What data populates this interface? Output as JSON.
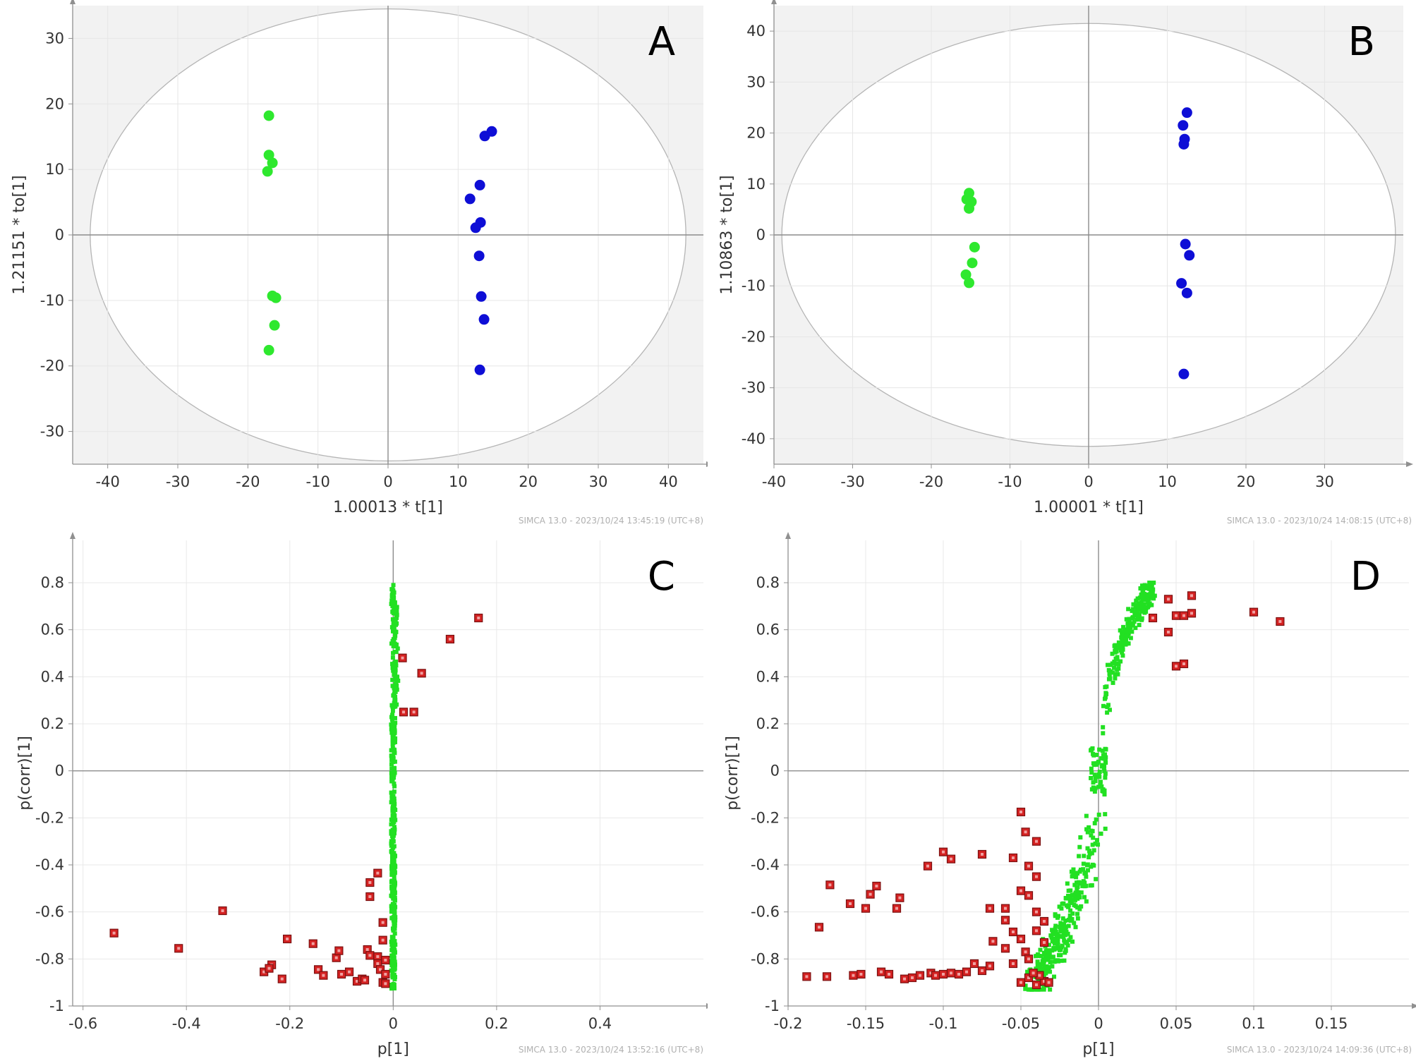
{
  "chart_data": [
    {
      "id": "A",
      "type": "scatter",
      "panel_letter": "A",
      "xlabel": "1.00013 * t[1]",
      "ylabel": "1.21151 * to[1]",
      "footer": "SIMCA 13.0 - 2023/10/24 13:45:19 (UTC+8)",
      "xlim": [
        -45,
        45
      ],
      "ylim": [
        -35,
        35
      ],
      "xticks": [
        -40,
        -30,
        -20,
        -10,
        0,
        10,
        20,
        30,
        40
      ],
      "yticks": [
        -30,
        -20,
        -10,
        0,
        10,
        20,
        30
      ],
      "ellipse": true,
      "ellipse_radii": [
        42.5,
        34.5
      ],
      "shaded_background": true,
      "grid": true,
      "series": [
        {
          "color": "#2ee82e",
          "shape": "circle",
          "points": [
            [
              -17,
              18.2
            ],
            [
              -17,
              12.2
            ],
            [
              -16.5,
              11
            ],
            [
              -17.2,
              9.7
            ],
            [
              -16.5,
              -9.3
            ],
            [
              -16,
              -9.6
            ],
            [
              -16.2,
              -13.8
            ],
            [
              -17,
              -17.6
            ]
          ]
        },
        {
          "color": "#0e0ed6",
          "shape": "circle",
          "points": [
            [
              14.8,
              15.8
            ],
            [
              13.8,
              15.1
            ],
            [
              13.1,
              7.6
            ],
            [
              11.7,
              5.5
            ],
            [
              13.2,
              1.9
            ],
            [
              12.5,
              1.1
            ],
            [
              13,
              -3.2
            ],
            [
              13.3,
              -9.4
            ],
            [
              13.7,
              -12.9
            ],
            [
              13.1,
              -20.6
            ]
          ]
        }
      ]
    },
    {
      "id": "B",
      "type": "scatter",
      "panel_letter": "B",
      "xlabel": "1.00001 * t[1]",
      "ylabel": "1.10863 * to[1]",
      "footer": "SIMCA 13.0 - 2023/10/24 14:08:15 (UTC+8)",
      "xlim": [
        -40,
        40
      ],
      "ylim": [
        -45,
        45
      ],
      "xticks": [
        -40,
        -30,
        -20,
        -10,
        0,
        10,
        20,
        30
      ],
      "yticks": [
        -40,
        -30,
        -20,
        -10,
        0,
        10,
        20,
        30,
        40
      ],
      "ellipse": true,
      "ellipse_radii": [
        39,
        41.5
      ],
      "shaded_background": true,
      "grid": true,
      "series": [
        {
          "color": "#2ee82e",
          "shape": "circle",
          "points": [
            [
              -15.2,
              8.2
            ],
            [
              -15.5,
              7
            ],
            [
              -14.9,
              6.5
            ],
            [
              -15.2,
              5.2
            ],
            [
              -14.5,
              -2.4
            ],
            [
              -14.8,
              -5.5
            ],
            [
              -15.6,
              -7.8
            ],
            [
              -15.2,
              -9.4
            ]
          ]
        },
        {
          "color": "#0e0ed6",
          "shape": "circle",
          "points": [
            [
              12.5,
              24
            ],
            [
              12,
              21.5
            ],
            [
              12.2,
              18.8
            ],
            [
              12.1,
              17.8
            ],
            [
              12.3,
              -1.8
            ],
            [
              12.8,
              -4
            ],
            [
              11.8,
              -9.5
            ],
            [
              12.5,
              -11.4
            ],
            [
              12.1,
              -27.3
            ]
          ]
        }
      ]
    },
    {
      "id": "C",
      "type": "scatter",
      "panel_letter": "C",
      "xlabel": "p[1]",
      "ylabel": "p(corr)[1]",
      "footer": "SIMCA 13.0 - 2023/10/24 13:52:16 (UTC+8)",
      "xlim": [
        -0.62,
        0.6
      ],
      "ylim": [
        -1,
        0.98
      ],
      "xticks": [
        -0.6,
        -0.4,
        -0.2,
        0,
        0.2,
        0.4
      ],
      "yticks": [
        -1,
        -0.8,
        -0.6,
        -0.4,
        -0.2,
        0,
        0.2,
        0.4,
        0.6,
        0.8
      ],
      "ellipse": false,
      "shaded_background": false,
      "grid": true,
      "green_band": {
        "color": "#22e022",
        "x_spread": 0.004,
        "y_range": [
          -0.93,
          0.8
        ],
        "count": 420
      },
      "series": [
        {
          "color": "#d42222",
          "shape": "square",
          "points": [
            [
              -0.54,
              -0.69
            ],
            [
              -0.415,
              -0.755
            ],
            [
              -0.33,
              -0.595
            ],
            [
              -0.25,
              -0.855
            ],
            [
              -0.235,
              -0.825
            ],
            [
              -0.24,
              -0.84
            ],
            [
              -0.215,
              -0.885
            ],
            [
              -0.205,
              -0.715
            ],
            [
              -0.155,
              -0.735
            ],
            [
              -0.145,
              -0.845
            ],
            [
              -0.135,
              -0.87
            ],
            [
              -0.11,
              -0.795
            ],
            [
              -0.105,
              -0.765
            ],
            [
              -0.1,
              -0.865
            ],
            [
              -0.085,
              -0.855
            ],
            [
              -0.07,
              -0.895
            ],
            [
              -0.06,
              -0.885
            ],
            [
              -0.055,
              -0.89
            ],
            [
              -0.05,
              -0.76
            ],
            [
              -0.045,
              -0.785
            ],
            [
              -0.045,
              -0.535
            ],
            [
              -0.045,
              -0.475
            ],
            [
              -0.03,
              -0.435
            ],
            [
              -0.03,
              -0.79
            ],
            [
              -0.03,
              -0.82
            ],
            [
              -0.025,
              -0.845
            ],
            [
              -0.02,
              -0.72
            ],
            [
              -0.02,
              -0.9
            ],
            [
              -0.015,
              -0.905
            ],
            [
              -0.02,
              -0.645
            ],
            [
              -0.015,
              -0.805
            ],
            [
              -0.015,
              -0.865
            ],
            [
              0.018,
              0.48
            ],
            [
              0.055,
              0.415
            ],
            [
              0.11,
              0.56
            ],
            [
              0.165,
              0.65
            ],
            [
              0.02,
              0.25
            ],
            [
              0.04,
              0.25
            ]
          ]
        }
      ]
    },
    {
      "id": "D",
      "type": "scatter",
      "panel_letter": "D",
      "xlabel": "p[1]",
      "ylabel": "p(corr)[1]",
      "footer": "SIMCA 13.0 - 2023/10/24 14:09:36 (UTC+8)",
      "xlim": [
        -0.2,
        0.2
      ],
      "ylim": [
        -1,
        0.98
      ],
      "xticks": [
        -0.2,
        -0.15,
        -0.1,
        -0.05,
        0,
        0.05,
        0.1,
        0.15
      ],
      "yticks": [
        -1,
        -0.8,
        -0.6,
        -0.4,
        -0.2,
        0,
        0.2,
        0.4,
        0.6,
        0.8
      ],
      "ellipse": false,
      "shaded_background": false,
      "grid": true,
      "green_cloud": {
        "color": "#22e022",
        "count": 560
      },
      "series": [
        {
          "color": "#d42222",
          "shape": "square",
          "points": [
            [
              -0.188,
              -0.875
            ],
            [
              -0.18,
              -0.665
            ],
            [
              -0.175,
              -0.875
            ],
            [
              -0.173,
              -0.485
            ],
            [
              -0.16,
              -0.565
            ],
            [
              -0.158,
              -0.87
            ],
            [
              -0.153,
              -0.865
            ],
            [
              -0.15,
              -0.585
            ],
            [
              -0.147,
              -0.525
            ],
            [
              -0.143,
              -0.49
            ],
            [
              -0.14,
              -0.855
            ],
            [
              -0.135,
              -0.865
            ],
            [
              -0.13,
              -0.585
            ],
            [
              -0.128,
              -0.54
            ],
            [
              -0.125,
              -0.885
            ],
            [
              -0.12,
              -0.88
            ],
            [
              -0.115,
              -0.87
            ],
            [
              -0.11,
              -0.405
            ],
            [
              -0.108,
              -0.86
            ],
            [
              -0.105,
              -0.87
            ],
            [
              -0.1,
              -0.865
            ],
            [
              -0.095,
              -0.86
            ],
            [
              -0.09,
              -0.865
            ],
            [
              -0.085,
              -0.855
            ],
            [
              -0.08,
              -0.82
            ],
            [
              -0.075,
              -0.85
            ],
            [
              -0.07,
              -0.83
            ],
            [
              -0.06,
              -0.585
            ],
            [
              -0.06,
              -0.635
            ],
            [
              -0.055,
              -0.685
            ],
            [
              -0.05,
              -0.715
            ],
            [
              -0.047,
              -0.77
            ],
            [
              -0.045,
              -0.8
            ],
            [
              -0.1,
              -0.345
            ],
            [
              -0.095,
              -0.375
            ],
            [
              -0.075,
              -0.355
            ],
            [
              -0.07,
              -0.585
            ],
            [
              -0.068,
              -0.725
            ],
            [
              -0.06,
              -0.755
            ],
            [
              -0.055,
              -0.82
            ],
            [
              -0.05,
              -0.175
            ],
            [
              -0.047,
              -0.26
            ],
            [
              -0.04,
              -0.3
            ],
            [
              -0.045,
              -0.405
            ],
            [
              -0.04,
              -0.45
            ],
            [
              -0.055,
              -0.37
            ],
            [
              -0.05,
              -0.51
            ],
            [
              -0.045,
              -0.53
            ],
            [
              -0.04,
              -0.6
            ],
            [
              -0.035,
              -0.64
            ],
            [
              -0.04,
              -0.68
            ],
            [
              -0.035,
              -0.73
            ],
            [
              -0.05,
              -0.9
            ],
            [
              -0.045,
              -0.88
            ],
            [
              -0.04,
              -0.91
            ],
            [
              -0.035,
              -0.895
            ],
            [
              -0.038,
              -0.87
            ],
            [
              -0.032,
              -0.9
            ],
            [
              -0.042,
              -0.86
            ],
            [
              0.035,
              0.65
            ],
            [
              0.045,
              0.73
            ],
            [
              0.05,
              0.66
            ],
            [
              0.055,
              0.66
            ],
            [
              0.06,
              0.745
            ],
            [
              0.06,
              0.67
            ],
            [
              0.045,
              0.59
            ],
            [
              0.05,
              0.445
            ],
            [
              0.055,
              0.455
            ],
            [
              0.1,
              0.675
            ],
            [
              0.117,
              0.635
            ]
          ]
        }
      ]
    }
  ]
}
